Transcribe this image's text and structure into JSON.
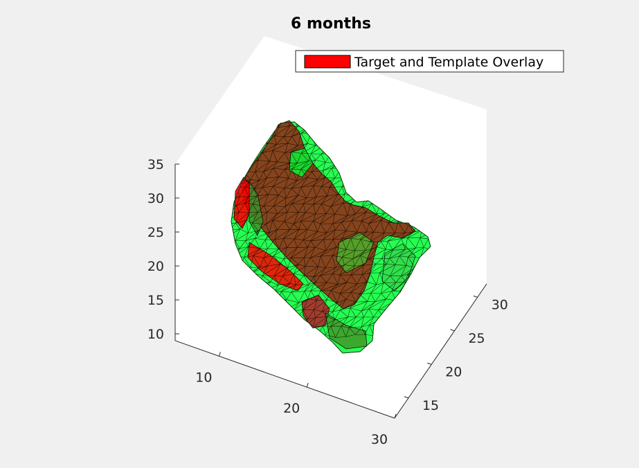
{
  "chart_data": {
    "type": "3d-mesh",
    "title": "6 months",
    "legend": {
      "placement": "top-right",
      "entries": [
        {
          "label": "Target and Template Overlay",
          "color": "#ff0000"
        }
      ]
    },
    "series": [
      {
        "name": "Target and Template Overlay",
        "color": "#ff0000"
      },
      {
        "color": "#00ff33"
      }
    ],
    "axes": {
      "x": {
        "ticks": [
          10,
          20,
          30
        ],
        "range": [
          5,
          30
        ]
      },
      "y": {
        "ticks": [
          15,
          20,
          25,
          30
        ],
        "range": [
          12,
          32
        ]
      },
      "z": {
        "ticks": [
          10,
          15,
          20,
          25,
          30,
          35
        ],
        "range": [
          9,
          35
        ]
      }
    },
    "grid": false,
    "colors": {
      "background": "#f0f0f0",
      "axes_face": "#ffffff",
      "mesh_edge": "#000000"
    }
  }
}
